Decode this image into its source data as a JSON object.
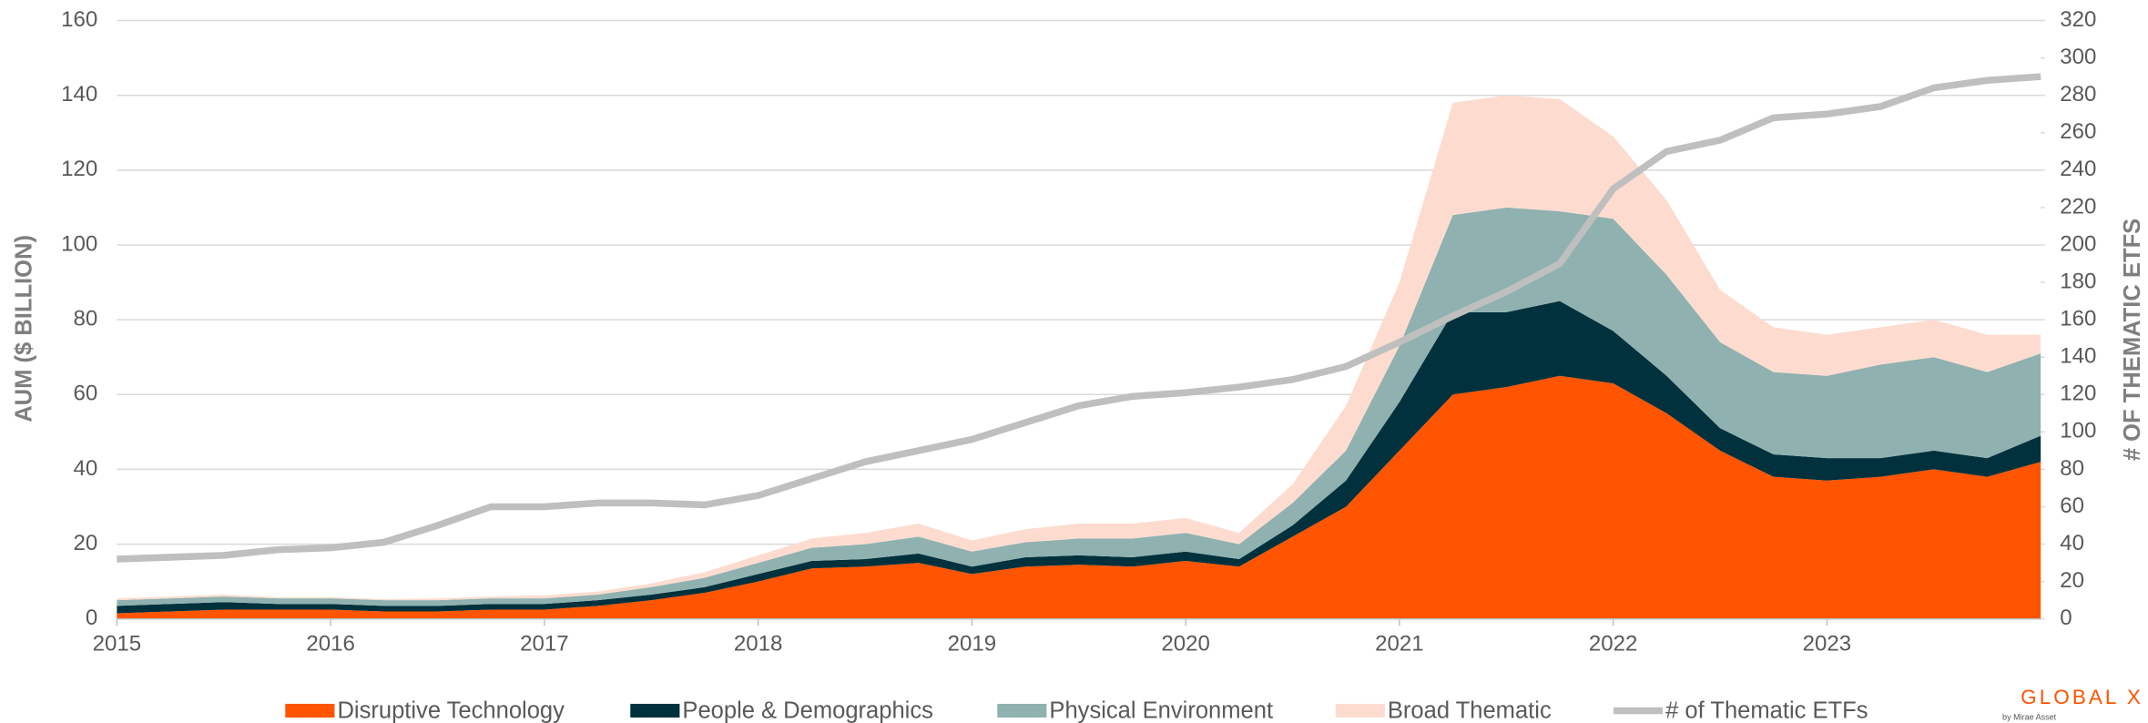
{
  "chart_data": {
    "type": "stacked-area-line",
    "y_label": "AUM ($ BILLION)",
    "y2_label": "# OF THEMATIC ETFS",
    "logo": "GLOBAL X",
    "logo_sub": "by Mirae Asset",
    "x": [
      2015,
      2015.25,
      2015.5,
      2015.75,
      2016,
      2016.25,
      2016.5,
      2016.75,
      2017,
      2017.25,
      2017.5,
      2017.75,
      2018,
      2018.25,
      2018.5,
      2018.75,
      2019,
      2019.25,
      2019.5,
      2019.75,
      2020,
      2020.25,
      2020.5,
      2020.75,
      2021,
      2021.25,
      2021.5,
      2021.75,
      2022,
      2022.25,
      2022.5,
      2022.75,
      2023,
      2023.25,
      2023.5,
      2023.75,
      2024
    ],
    "xlim": [
      2015,
      2024
    ],
    "xticks": [
      2015,
      2016,
      2017,
      2018,
      2019,
      2020,
      2021,
      2022,
      2023
    ],
    "ylim": [
      0,
      160
    ],
    "yticks": [
      0,
      20,
      40,
      60,
      80,
      100,
      120,
      140,
      160
    ],
    "y2lim": [
      0,
      320
    ],
    "y2ticks": [
      0,
      20,
      40,
      60,
      80,
      100,
      120,
      140,
      160,
      180,
      200,
      220,
      240,
      260,
      280,
      300,
      320
    ],
    "grid": true,
    "legend": "bottom",
    "series": [
      {
        "name": "Disruptive Technology",
        "color": "#ff5500",
        "stack": true,
        "values": [
          1.5,
          2,
          2.5,
          2.5,
          2.5,
          2,
          2,
          2.5,
          2.5,
          3.5,
          5,
          7,
          10,
          13.5,
          14,
          15,
          12,
          14,
          14.5,
          14,
          15.5,
          14,
          22,
          30,
          45,
          60,
          62,
          65,
          63,
          55,
          45,
          38,
          37,
          38,
          40,
          38,
          42
        ]
      },
      {
        "name": "People & Demographics",
        "color": "#00313c",
        "stack": true,
        "values": [
          2,
          2,
          2,
          1.5,
          1.5,
          1.5,
          1.5,
          1.5,
          1.5,
          1.5,
          1.5,
          1.5,
          2,
          2,
          2,
          2.5,
          2,
          2.5,
          2.5,
          2.5,
          2.5,
          2,
          3,
          7,
          13,
          22,
          20,
          20,
          14,
          10,
          6,
          6,
          6,
          5,
          5,
          5,
          7
        ]
      },
      {
        "name": "Physical Environment",
        "color": "#8fb1b0",
        "stack": true,
        "values": [
          1.5,
          1.5,
          1.5,
          1.5,
          1.5,
          1.5,
          1.5,
          1.5,
          1.5,
          1.5,
          2,
          2.5,
          3,
          3.5,
          4,
          4.5,
          4,
          4,
          4.5,
          5,
          5,
          4,
          6,
          8,
          15,
          26,
          28,
          24,
          30,
          27,
          23,
          22,
          22,
          25,
          25,
          23,
          22
        ]
      },
      {
        "name": "Broad Thematic",
        "color": "#fddccf",
        "stack": true,
        "values": [
          0.5,
          0.5,
          0.5,
          0.3,
          0.3,
          0.3,
          0.5,
          0.5,
          0.8,
          0.8,
          1,
          1.5,
          2,
          2.5,
          3,
          3.5,
          3,
          3.5,
          4,
          4,
          4,
          3,
          5,
          12,
          17,
          30,
          30,
          30,
          22,
          20,
          14,
          12,
          11,
          10,
          10,
          10,
          5
        ]
      },
      {
        "name": "# of Thematic ETFs",
        "color": "#bfbfbf",
        "axis": "y2",
        "values": [
          32,
          33,
          34,
          37,
          38,
          41,
          50,
          60,
          60,
          62,
          62,
          61,
          66,
          75,
          84,
          90,
          96,
          105,
          114,
          119,
          121,
          124,
          128,
          135,
          148,
          162,
          175,
          190,
          230,
          250,
          256,
          268,
          270,
          274,
          284,
          288,
          290
        ]
      }
    ]
  }
}
